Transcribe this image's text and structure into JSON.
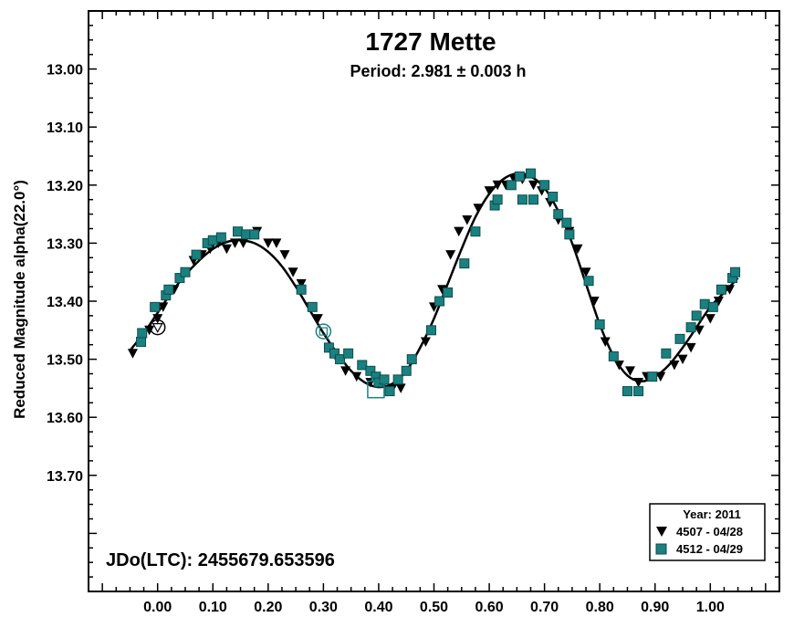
{
  "colors": {
    "series1": "#000000",
    "series2": "#1a8080",
    "frame": "#000000",
    "background": "#ffffff"
  },
  "chart_data": {
    "type": "scatter",
    "title": "1727 Mette",
    "subtitle": "Period: 2.981 ± 0.003 h",
    "xlabel": "",
    "ylabel": "Reduced Magnitude alpha(22.0°)",
    "annotation": "JDo(LTC): 2455679.653596",
    "xlim": [
      -0.125,
      1.125
    ],
    "ylim": [
      13.9,
      12.9
    ],
    "y_inverted": true,
    "grid": false,
    "x_ticks": [
      "0.00",
      "0.10",
      "0.20",
      "0.30",
      "0.40",
      "0.50",
      "0.60",
      "0.70",
      "0.80",
      "0.90",
      "1.00"
    ],
    "y_ticks": [
      "13.00",
      "13.10",
      "13.20",
      "13.30",
      "13.40",
      "13.50",
      "13.60",
      "13.70"
    ],
    "legend": {
      "placement": "bottom-right",
      "title": "Year: 2011",
      "entries": [
        {
          "label": "4507 - 04/28",
          "marker": "triangle-down",
          "color": "#000000"
        },
        {
          "label": "4512 - 04/29",
          "marker": "square",
          "color": "#1a8080"
        }
      ]
    },
    "fit_curve": {
      "type": "fourier",
      "x": [
        -0.05,
        -0.025,
        0,
        0.025,
        0.05,
        0.075,
        0.1,
        0.125,
        0.15,
        0.175,
        0.2,
        0.225,
        0.25,
        0.275,
        0.3,
        0.325,
        0.35,
        0.375,
        0.4,
        0.425,
        0.45,
        0.475,
        0.5,
        0.525,
        0.55,
        0.575,
        0.6,
        0.625,
        0.65,
        0.675,
        0.7,
        0.725,
        0.75,
        0.775,
        0.8,
        0.825,
        0.85,
        0.875,
        0.9,
        0.925,
        0.95,
        0.975,
        1.0,
        1.025,
        1.05
      ],
      "y": [
        13.485,
        13.455,
        13.42,
        13.385,
        13.355,
        13.33,
        13.31,
        13.298,
        13.295,
        13.3,
        13.315,
        13.34,
        13.375,
        13.415,
        13.455,
        13.49,
        13.52,
        13.54,
        13.548,
        13.542,
        13.52,
        13.48,
        13.43,
        13.37,
        13.31,
        13.255,
        13.215,
        13.19,
        13.18,
        13.185,
        13.205,
        13.245,
        13.3,
        13.37,
        13.44,
        13.495,
        13.528,
        13.538,
        13.53,
        13.51,
        13.48,
        13.445,
        13.41,
        13.385,
        13.36
      ]
    },
    "series": [
      {
        "name": "4507 - 04/28",
        "marker": "triangle-down",
        "points": [
          [
            -0.045,
            13.49
          ],
          [
            -0.03,
            13.47
          ],
          [
            -0.015,
            13.45
          ],
          [
            0.0,
            13.43
          ],
          [
            0.01,
            13.41
          ],
          [
            0.03,
            13.38
          ],
          [
            0.05,
            13.35
          ],
          [
            0.065,
            13.33
          ],
          [
            0.08,
            13.32
          ],
          [
            0.095,
            13.31
          ],
          [
            0.11,
            13.3
          ],
          [
            0.125,
            13.31
          ],
          [
            0.14,
            13.3
          ],
          [
            0.155,
            13.3
          ],
          [
            0.18,
            13.28
          ],
          [
            0.2,
            13.3
          ],
          [
            0.215,
            13.3
          ],
          [
            0.23,
            13.32
          ],
          [
            0.245,
            13.35
          ],
          [
            0.26,
            13.37
          ],
          [
            0.275,
            13.41
          ],
          [
            0.29,
            13.43
          ],
          [
            0.31,
            13.48
          ],
          [
            0.325,
            13.5
          ],
          [
            0.34,
            13.52
          ],
          [
            0.36,
            13.53
          ],
          [
            0.385,
            13.54
          ],
          [
            0.41,
            13.54
          ],
          [
            0.425,
            13.55
          ],
          [
            0.44,
            13.55
          ],
          [
            0.46,
            13.5
          ],
          [
            0.485,
            13.47
          ],
          [
            0.5,
            13.41
          ],
          [
            0.515,
            13.38
          ],
          [
            0.53,
            13.32
          ],
          [
            0.545,
            13.28
          ],
          [
            0.56,
            13.26
          ],
          [
            0.58,
            13.24
          ],
          [
            0.6,
            13.21
          ],
          [
            0.615,
            13.2
          ],
          [
            0.63,
            13.2
          ],
          [
            0.645,
            13.19
          ],
          [
            0.66,
            13.19
          ],
          [
            0.68,
            13.2
          ],
          [
            0.695,
            13.21
          ],
          [
            0.71,
            13.23
          ],
          [
            0.725,
            13.26
          ],
          [
            0.745,
            13.28
          ],
          [
            0.76,
            13.31
          ],
          [
            0.775,
            13.35
          ],
          [
            0.79,
            13.4
          ],
          [
            0.81,
            13.47
          ],
          [
            0.835,
            13.51
          ],
          [
            0.855,
            13.52
          ],
          [
            0.87,
            13.54
          ],
          [
            0.885,
            13.53
          ],
          [
            0.91,
            13.53
          ],
          [
            0.935,
            13.51
          ],
          [
            0.95,
            13.5
          ],
          [
            0.965,
            13.48
          ],
          [
            0.98,
            13.45
          ],
          [
            1.0,
            13.43
          ],
          [
            1.015,
            13.4
          ],
          [
            1.035,
            13.38
          ]
        ]
      },
      {
        "name": "4512 - 04/29",
        "marker": "square",
        "points": [
          [
            -0.03,
            13.47
          ],
          [
            -0.028,
            13.455
          ],
          [
            -0.005,
            13.41
          ],
          [
            0.015,
            13.39
          ],
          [
            0.02,
            13.38
          ],
          [
            0.04,
            13.36
          ],
          [
            0.05,
            13.35
          ],
          [
            0.07,
            13.32
          ],
          [
            0.09,
            13.3
          ],
          [
            0.1,
            13.295
          ],
          [
            0.115,
            13.29
          ],
          [
            0.145,
            13.28
          ],
          [
            0.16,
            13.285
          ],
          [
            0.175,
            13.285
          ],
          [
            0.26,
            13.38
          ],
          [
            0.28,
            13.41
          ],
          [
            0.31,
            13.48
          ],
          [
            0.32,
            13.49
          ],
          [
            0.33,
            13.5
          ],
          [
            0.345,
            13.49
          ],
          [
            0.37,
            13.51
          ],
          [
            0.385,
            13.52
          ],
          [
            0.395,
            13.53
          ],
          [
            0.4,
            13.54
          ],
          [
            0.41,
            13.535
          ],
          [
            0.42,
            13.555
          ],
          [
            0.435,
            13.535
          ],
          [
            0.45,
            13.52
          ],
          [
            0.46,
            13.5
          ],
          [
            0.495,
            13.45
          ],
          [
            0.51,
            13.4
          ],
          [
            0.525,
            13.385
          ],
          [
            0.555,
            13.335
          ],
          [
            0.575,
            13.28
          ],
          [
            0.61,
            13.235
          ],
          [
            0.615,
            13.225
          ],
          [
            0.64,
            13.2
          ],
          [
            0.655,
            13.185
          ],
          [
            0.66,
            13.225
          ],
          [
            0.675,
            13.18
          ],
          [
            0.68,
            13.225
          ],
          [
            0.7,
            13.2
          ],
          [
            0.715,
            13.22
          ],
          [
            0.725,
            13.25
          ],
          [
            0.74,
            13.265
          ],
          [
            0.745,
            13.285
          ],
          [
            0.78,
            13.365
          ],
          [
            0.8,
            13.44
          ],
          [
            0.825,
            13.495
          ],
          [
            0.85,
            13.555
          ],
          [
            0.87,
            13.555
          ],
          [
            0.895,
            13.53
          ],
          [
            0.92,
            13.49
          ],
          [
            0.945,
            13.465
          ],
          [
            0.965,
            13.445
          ],
          [
            0.975,
            13.425
          ],
          [
            0.99,
            13.405
          ],
          [
            1.005,
            13.41
          ],
          [
            1.02,
            13.38
          ],
          [
            1.04,
            13.36
          ],
          [
            1.045,
            13.35
          ]
        ]
      }
    ],
    "highlighted_points": [
      {
        "x": 0.0,
        "y": 13.445,
        "marker": "circle-triangle",
        "color": "#000000"
      },
      {
        "x": 0.3,
        "y": 13.452,
        "marker": "circle-square",
        "color": "#1a8080"
      },
      {
        "x": 0.395,
        "y": 13.552,
        "marker": "square-outline",
        "color": "#1a8080"
      }
    ]
  }
}
